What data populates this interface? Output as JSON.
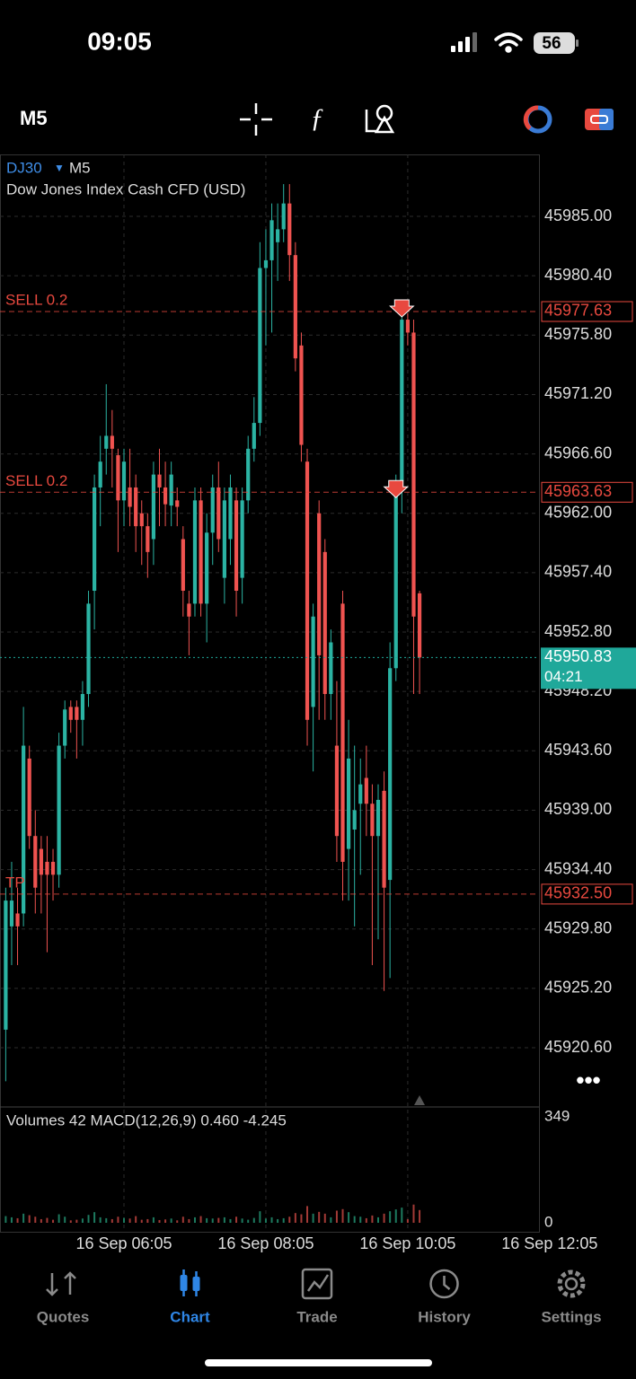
{
  "status_bar": {
    "time": "09:05",
    "battery": "56"
  },
  "toolbar": {
    "timeframe": "M5"
  },
  "chart_data": {
    "type": "candlestick",
    "symbol": "DJ30",
    "timeframe": "M5",
    "title": "Dow Jones Index Cash CFD (USD)",
    "up_color": "#2bb3a3",
    "down_color": "#ef5350",
    "candles": [
      [
        45922,
        45933,
        45918,
        45932
      ],
      [
        45930,
        45935,
        45927,
        45932
      ],
      [
        45931,
        45933,
        45927,
        45930
      ],
      [
        45931,
        45947,
        45930,
        45944
      ],
      [
        45943,
        45944,
        45936,
        45937
      ],
      [
        45937,
        45939,
        45931,
        45933
      ],
      [
        45936,
        45937,
        45931,
        45934
      ],
      [
        45935,
        45937,
        45928,
        45934
      ],
      [
        45935,
        45936,
        45932,
        45934
      ],
      [
        45934,
        45945,
        45933,
        45944
      ],
      [
        45944,
        45947.5,
        45943,
        45946.8
      ],
      [
        45947,
        45947.5,
        45945,
        45946
      ],
      [
        45947,
        45947.5,
        45943,
        45946
      ],
      [
        45946,
        45949,
        45944,
        45948
      ],
      [
        45948,
        45956,
        45947,
        45955
      ],
      [
        45956,
        45965,
        45953,
        45964
      ],
      [
        45964,
        45968,
        45961,
        45966
      ],
      [
        45967,
        45972,
        45965,
        45968
      ],
      [
        45968,
        45970,
        45964,
        45967
      ],
      [
        45966.5,
        45967,
        45959,
        45963
      ],
      [
        45963,
        45967,
        45961,
        45966
      ],
      [
        45964,
        45967,
        45961,
        45962.5
      ],
      [
        45964,
        45965,
        45959,
        45961
      ],
      [
        45962,
        45963,
        45958,
        45961
      ],
      [
        45961,
        45962,
        45957,
        45959
      ],
      [
        45960,
        45966,
        45958,
        45965
      ],
      [
        45965,
        45967,
        45961,
        45964
      ],
      [
        45964,
        45966,
        45961,
        45962.7
      ],
      [
        45962.6,
        45966,
        45961,
        45965
      ],
      [
        45963,
        45964,
        45961,
        45962.5
      ],
      [
        45960,
        45961,
        45954,
        45956
      ],
      [
        45955,
        45956,
        45951,
        45954
      ],
      [
        45955,
        45964,
        45954,
        45963
      ],
      [
        45963,
        45964,
        45954,
        45955
      ],
      [
        45955,
        45962,
        45952,
        45960.5
      ],
      [
        45960.5,
        45965,
        45958,
        45964
      ],
      [
        45964,
        45966,
        45959,
        45960
      ],
      [
        45957,
        45964,
        45955,
        45963
      ],
      [
        45960,
        45965,
        45958,
        45964
      ],
      [
        45963,
        45964,
        45954,
        45956
      ],
      [
        45957,
        45964,
        45955,
        45963
      ],
      [
        45963,
        45968,
        45962,
        45967
      ],
      [
        45967,
        45971,
        45966,
        45969
      ],
      [
        45969,
        45983,
        45968,
        45981
      ],
      [
        45981,
        45984,
        45975,
        45981.6
      ],
      [
        45981.6,
        45986,
        45976,
        45984.7
      ],
      [
        45983,
        45986,
        45980,
        45984
      ],
      [
        45984,
        45987.5,
        45983,
        45986
      ],
      [
        45986,
        45987.5,
        45980,
        45982
      ],
      [
        45982,
        45983,
        45973,
        45974
      ],
      [
        45975,
        45976,
        45966,
        45967.3
      ],
      [
        45966,
        45967,
        45944,
        45946
      ],
      [
        45947,
        45955,
        45942,
        45954
      ],
      [
        45962,
        45963,
        45946,
        45951
      ],
      [
        45959,
        45960,
        45946,
        45948
      ],
      [
        45948,
        45953,
        45946,
        45952
      ],
      [
        45944,
        45949,
        45935,
        45937
      ],
      [
        45955,
        45956,
        45932,
        45935
      ],
      [
        45936,
        45946,
        45932,
        45943
      ],
      [
        45937.5,
        45944,
        45930,
        45939
      ],
      [
        45939.5,
        45943,
        45934,
        45941
      ],
      [
        45941.5,
        45944,
        45937,
        45939.5
      ],
      [
        45939.5,
        45941,
        45927,
        45937
      ],
      [
        45937,
        45941,
        45929,
        45939.8
      ],
      [
        45940.5,
        45942,
        45925,
        45933
      ],
      [
        45933.6,
        45952,
        45926,
        45950
      ],
      [
        45950,
        45965,
        45949,
        45964.5
      ],
      [
        45964.5,
        45977.6,
        45962,
        45977
      ],
      [
        45977,
        45977.5,
        45975,
        45976
      ],
      [
        45976,
        45977,
        45948,
        45954
      ],
      [
        45955.8,
        45956,
        45948,
        45950.83
      ]
    ],
    "xlim": [
      -0.97,
      90.2
    ],
    "xticks": [
      {
        "value": 20,
        "label": "16 Sep 06:05"
      },
      {
        "value": 44,
        "label": "16 Sep 08:05"
      },
      {
        "value": 68,
        "label": "16 Sep 10:05"
      },
      {
        "value": 92,
        "label": "16 Sep 12:05"
      }
    ],
    "ylim": [
      45916.08,
      45989.8
    ],
    "yticks": [
      {
        "value": 45985,
        "label": "45985.00"
      },
      {
        "value": 45980.4,
        "label": "45980.40"
      },
      {
        "value": 45975.8,
        "label": "45975.80"
      },
      {
        "value": 45971.2,
        "label": "45971.20"
      },
      {
        "value": 45966.6,
        "label": "45966.60"
      },
      {
        "value": 45962,
        "label": "45962.00"
      },
      {
        "value": 45957.4,
        "label": "45957.40"
      },
      {
        "value": 45952.8,
        "label": "45952.80"
      },
      {
        "value": 45948.2,
        "label": "45948.20"
      },
      {
        "value": 45943.6,
        "label": "45943.60"
      },
      {
        "value": 45939,
        "label": "45939.00"
      },
      {
        "value": 45934.4,
        "label": "45934.40"
      },
      {
        "value": 45929.8,
        "label": "45929.80"
      },
      {
        "value": 45925.2,
        "label": "45925.20"
      },
      {
        "value": 45920.6,
        "label": "45920.60"
      }
    ],
    "grid": true,
    "lines": [
      {
        "label": "SELL 0.2",
        "value": 45977.63,
        "color": "#e8493f",
        "marker_index": 67
      },
      {
        "label": "SELL 0.2",
        "value": 45963.63,
        "color": "#e8493f",
        "marker_index": 66
      },
      {
        "label": "TP",
        "value": 45932.5,
        "value_label": "45932.50",
        "color": "#e8493f"
      }
    ],
    "last": {
      "value": 45950.83,
      "countdown": "04:21",
      "color": "#1fa89a"
    },
    "indicator": {
      "title": "Volumes 42 MACD(12,26,9) 0.460 -4.245",
      "ylim": [
        0,
        349
      ],
      "yticks": [
        349,
        0
      ],
      "volumes": [
        22,
        18,
        15,
        30,
        25,
        20,
        12,
        16,
        10,
        28,
        20,
        8,
        10,
        14,
        26,
        35,
        18,
        15,
        12,
        20,
        16,
        14,
        22,
        10,
        12,
        18,
        9,
        11,
        14,
        8,
        20,
        12,
        18,
        22,
        15,
        14,
        16,
        18,
        12,
        20,
        14,
        10,
        16,
        38,
        14,
        18,
        12,
        15,
        20,
        32,
        28,
        55,
        30,
        36,
        30,
        18,
        40,
        45,
        35,
        22,
        20,
        15,
        24,
        18,
        30,
        38,
        44,
        50,
        12,
        60,
        42
      ]
    }
  },
  "tabs": [
    {
      "label": "Quotes"
    },
    {
      "label": "Chart",
      "active": true
    },
    {
      "label": "Trade"
    },
    {
      "label": "History"
    },
    {
      "label": "Settings"
    }
  ]
}
